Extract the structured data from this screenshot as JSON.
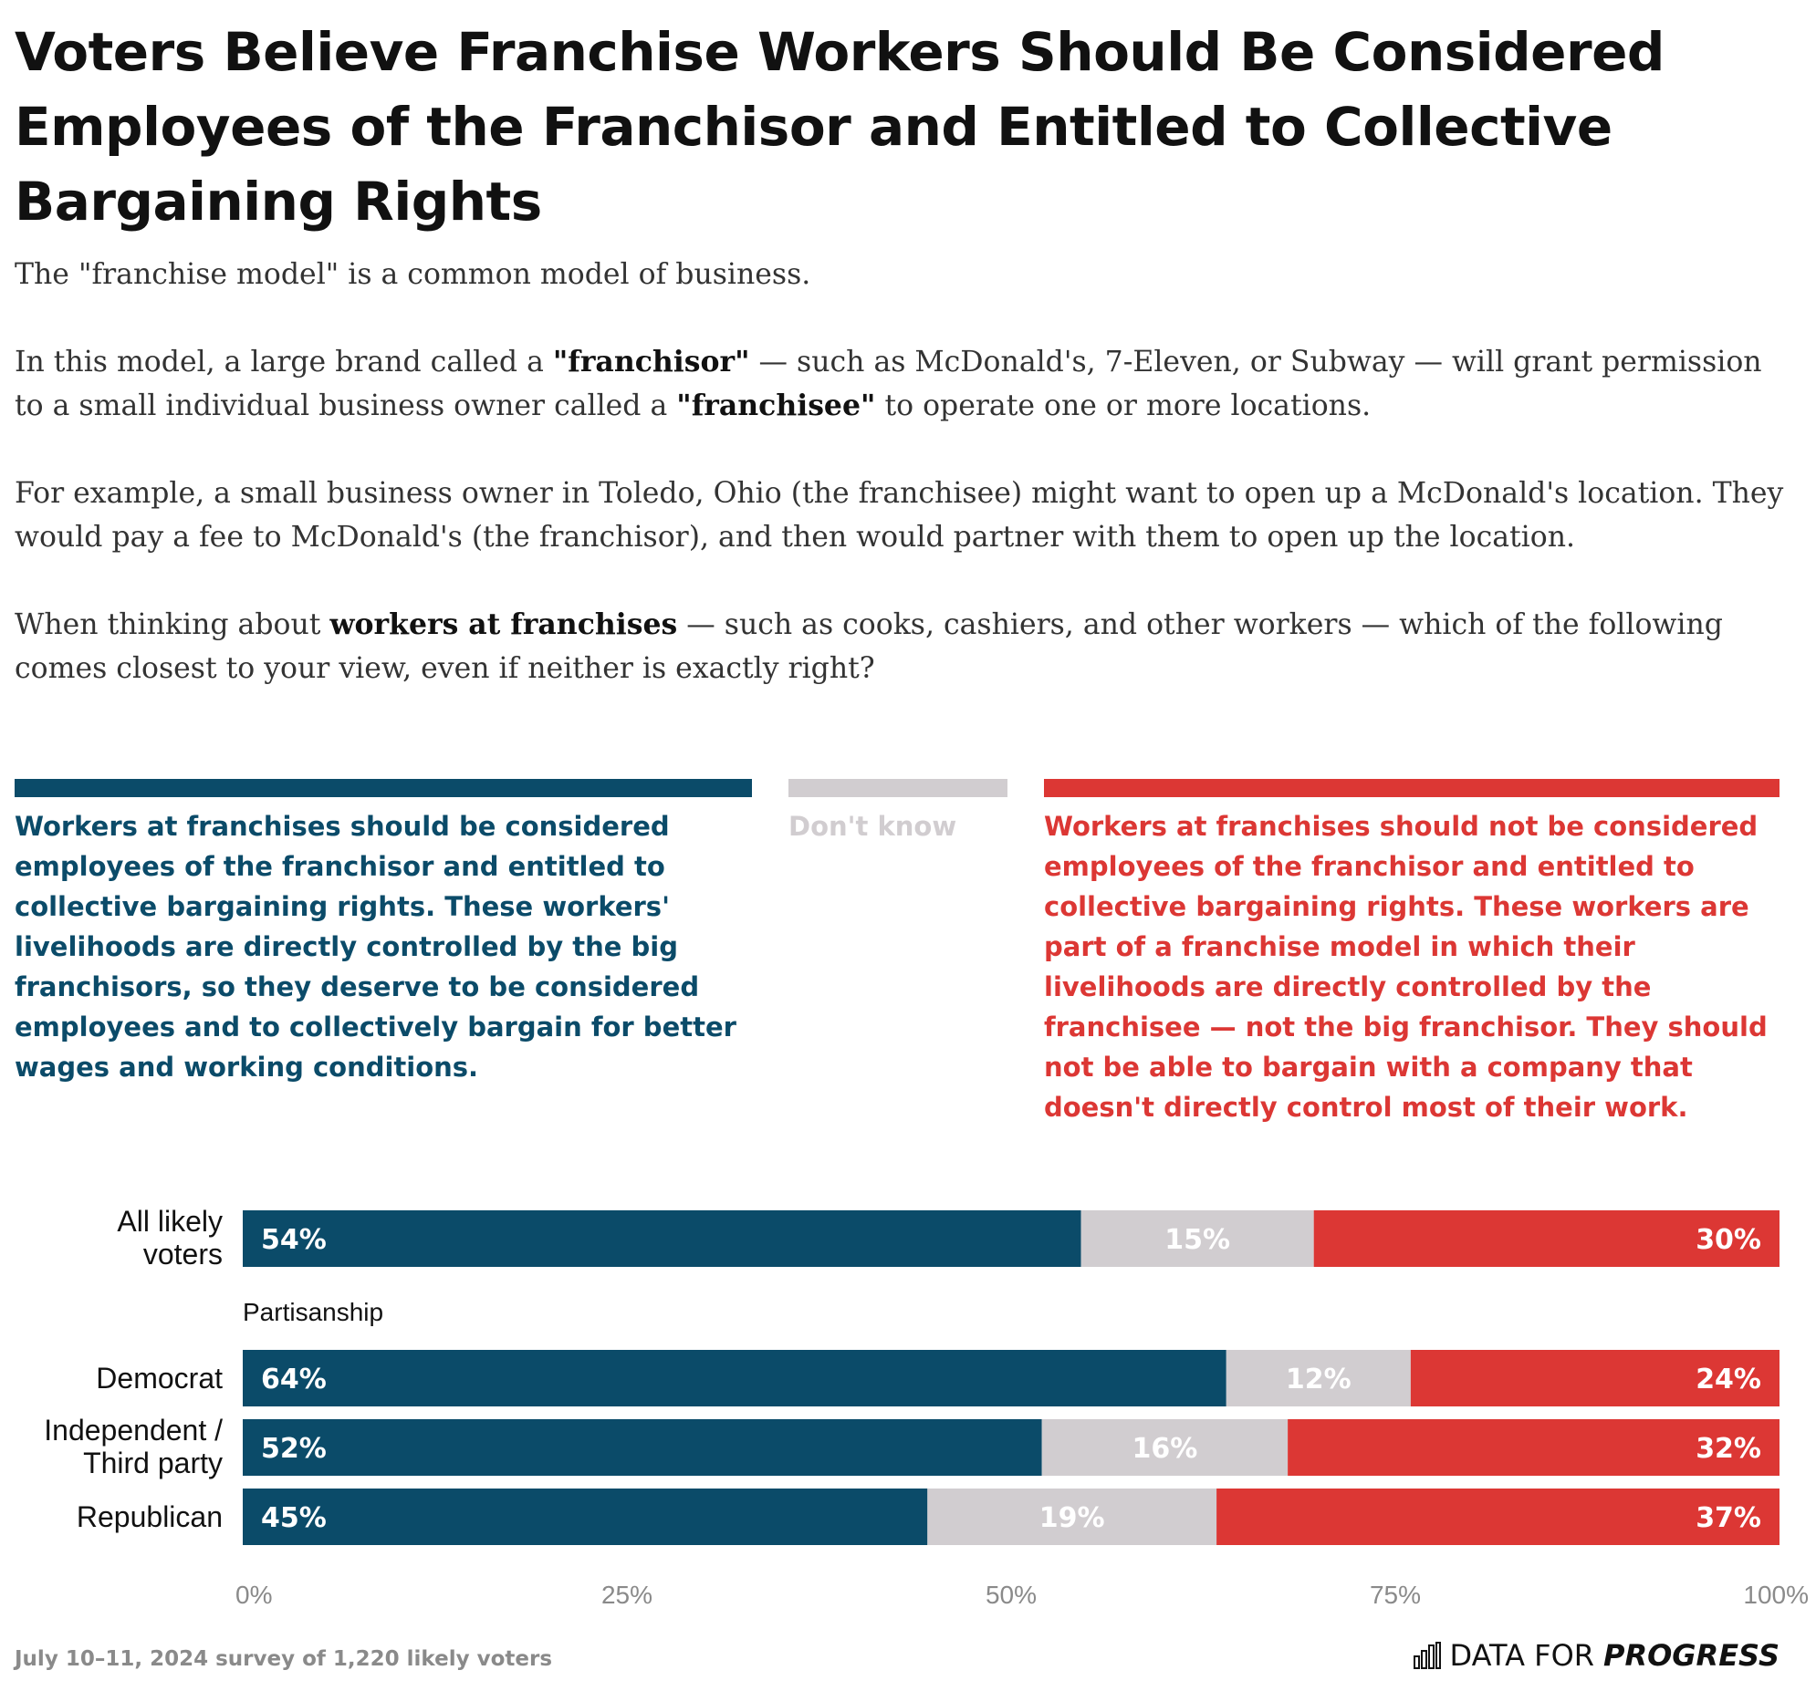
{
  "title": "Voters Believe Franchise Workers Should Be Considered Employees of the Franchisor and Entitled to Collective Bargaining Rights",
  "intro": {
    "p1": "The \"franchise model\" is a common model of business.",
    "p2_a": "In this model, a large brand called a ",
    "p2_b": "\"franchisor\"",
    "p2_c": " — such as McDonald's, 7-Eleven, or Subway — will grant permission to a small individual business owner called a ",
    "p2_d": "\"franchisee\"",
    "p2_e": " to operate one or more locations.",
    "p3": "For example, a small business owner in Toledo, Ohio (the franchisee) might want to open up a McDonald's location. They would pay a fee to McDonald's (the franchisor), and then would partner with them to open up the location.",
    "p4_a": "When thinking about ",
    "p4_b": "workers at franchises",
    "p4_c": " — such as cooks, cashiers, and other workers — which of the following comes closest to your view, even if neither is exactly right?"
  },
  "colors": {
    "support": "#0b4b69",
    "dont_know": "#d1cdd0",
    "oppose": "#dc3734"
  },
  "legend": {
    "support": "Workers at franchises should be considered employees of the franchisor and entitled to collective bargaining rights. These workers' livelihoods are directly controlled by the big franchisors, so they deserve to be considered employees and to collectively bargain for better wages and working conditions.",
    "dont_know": "Don't know",
    "oppose": "Workers at franchises should not be considered employees of the franchisor and entitled to collective bargaining rights. These workers are part of a franchise model in which their livelihoods are directly controlled by the franchisee — not the big franchisor. They should not be able to bargain with a company that doesn't directly control most of their work."
  },
  "chart_data": {
    "type": "bar",
    "stacked": true,
    "orientation": "horizontal",
    "xlim": [
      0,
      100
    ],
    "xticks": [
      "0%",
      "25%",
      "50%",
      "75%",
      "100%"
    ],
    "group_label": "Partisanship",
    "categories": [
      "All likely voters",
      "Democrat",
      "Independent / Third party",
      "Republican"
    ],
    "series": [
      {
        "name": "Workers at franchises should be considered employees of the franchisor",
        "values": [
          54,
          64,
          52,
          45
        ]
      },
      {
        "name": "Don't know",
        "values": [
          15,
          12,
          16,
          19
        ]
      },
      {
        "name": "Workers at franchises should not be considered employees of the franchisor",
        "values": [
          30,
          24,
          32,
          37
        ]
      }
    ],
    "labels": [
      [
        "54%",
        "15%",
        "30%"
      ],
      [
        "64%",
        "12%",
        "24%"
      ],
      [
        "52%",
        "16%",
        "32%"
      ],
      [
        "45%",
        "19%",
        "37%"
      ]
    ]
  },
  "footnote": "July 10–11, 2024 survey of 1,220 likely voters",
  "logo": {
    "light": "DATA FOR",
    "bold": "PROGRESS"
  }
}
